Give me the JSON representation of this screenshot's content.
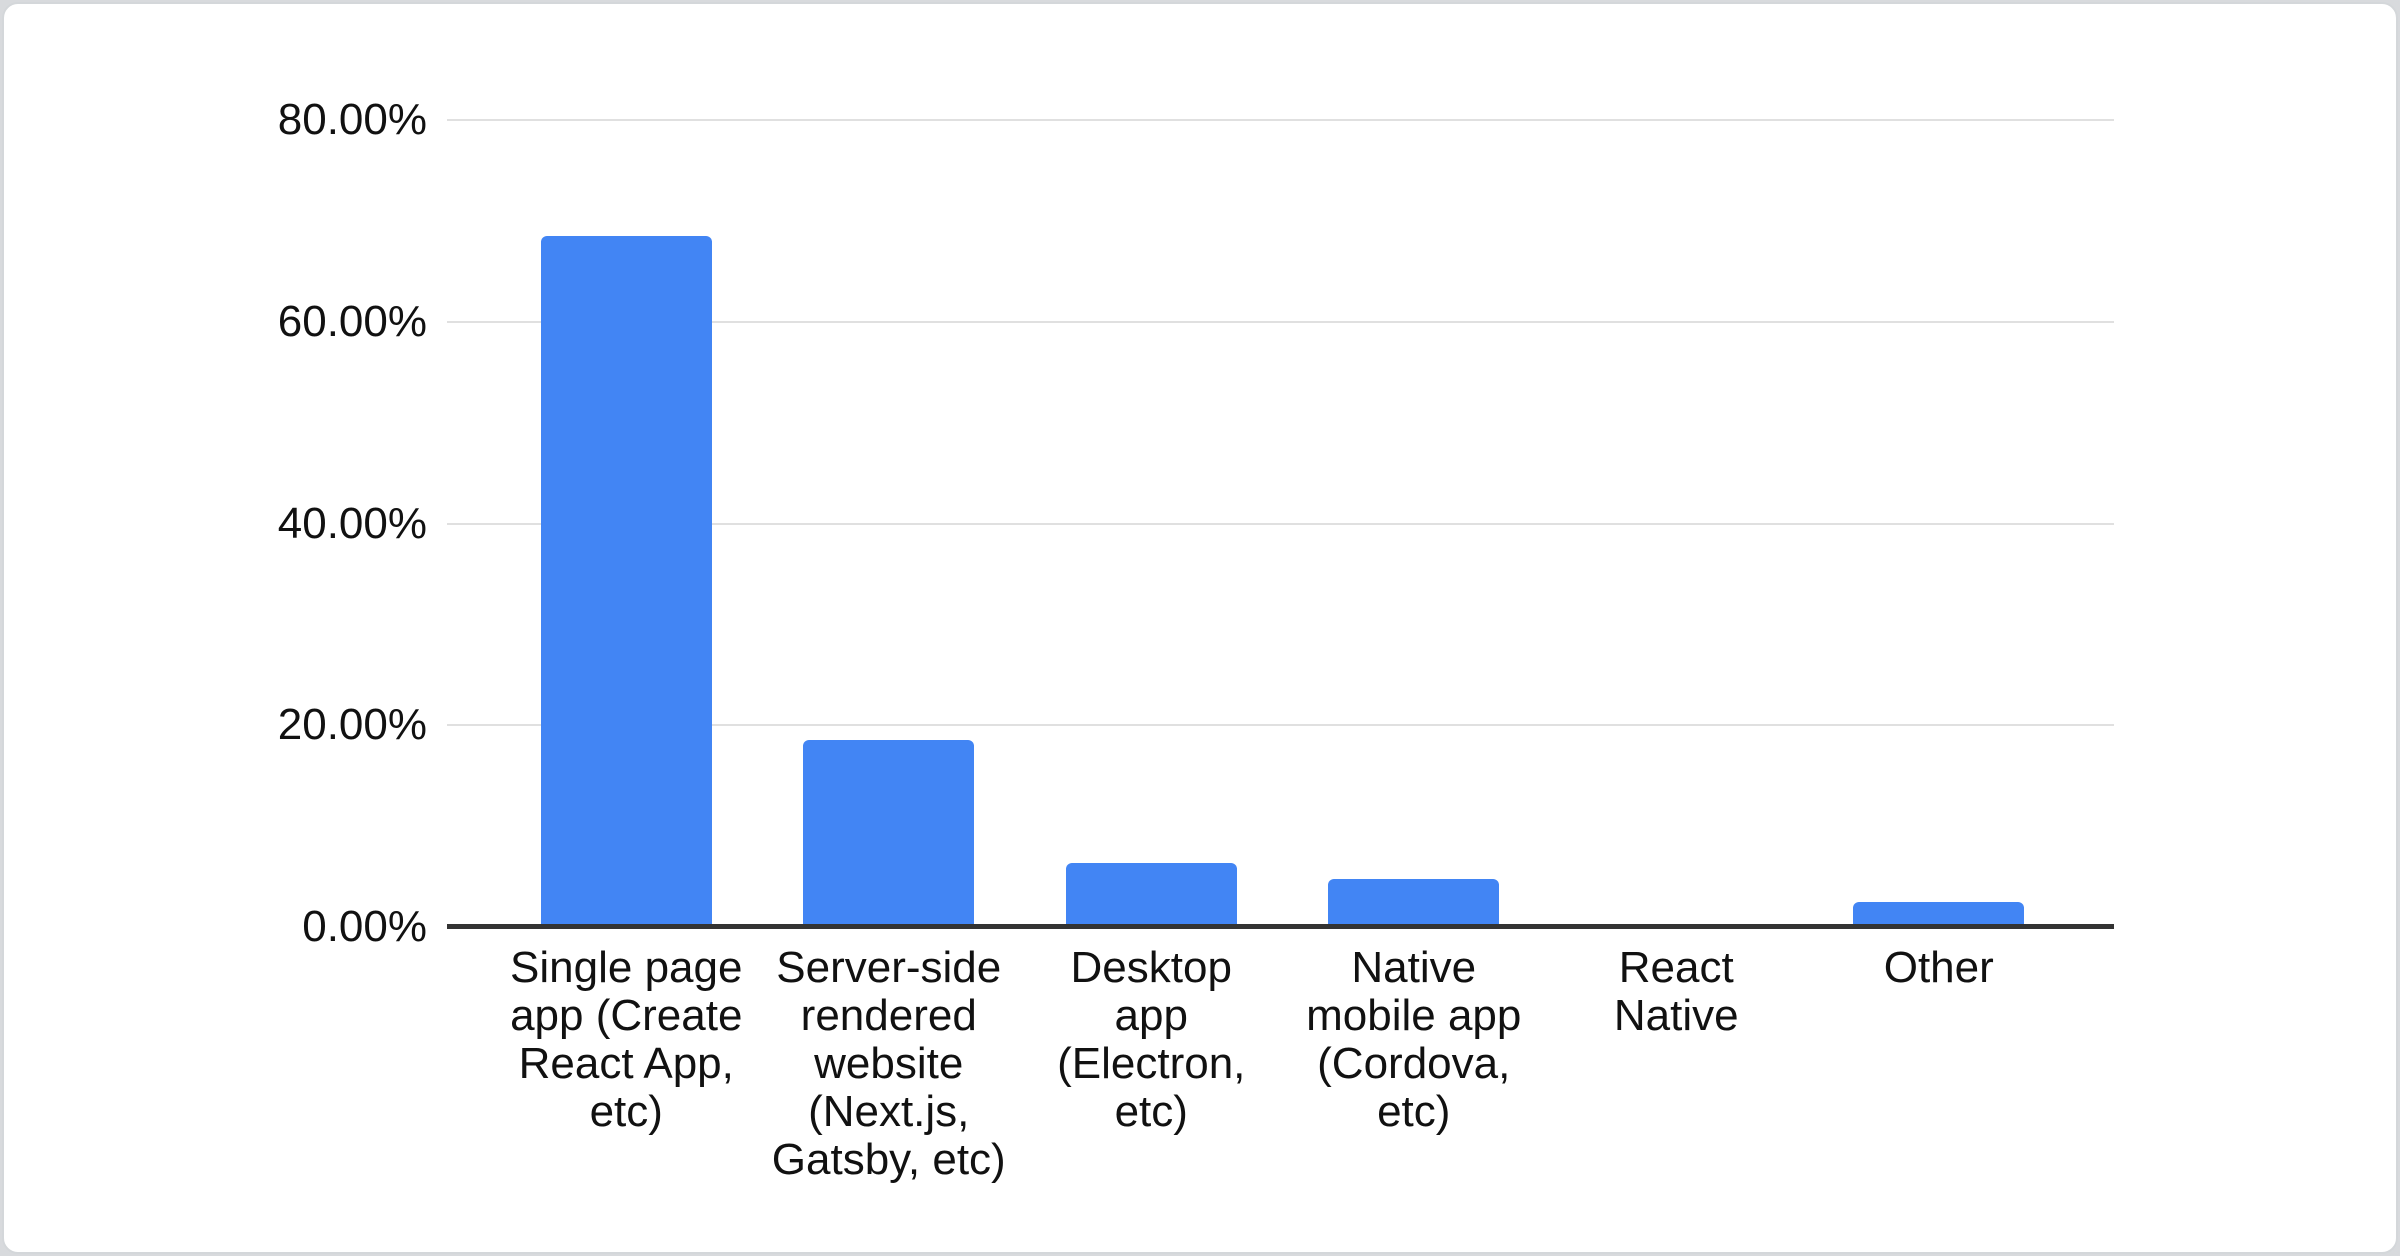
{
  "card": {
    "background": "#ffffff",
    "border_color": "#d4d7da",
    "page_background": "#d8dadd"
  },
  "colors": {
    "bar": "#4285f4",
    "gridline": "#e0e0e0",
    "axis_line": "#333333",
    "label_text": "#111111"
  },
  "chart_data": {
    "type": "bar",
    "title": "",
    "xlabel": "",
    "ylabel": "",
    "legend": "none",
    "grid": true,
    "ylim": [
      0,
      80
    ],
    "tick_format": "0.00%",
    "yticks": [
      {
        "value": 0,
        "label": "0.00%"
      },
      {
        "value": 20,
        "label": "20.00%"
      },
      {
        "value": 40,
        "label": "40.00%"
      },
      {
        "value": 60,
        "label": "60.00%"
      },
      {
        "value": 80,
        "label": "80.00%"
      }
    ],
    "categories": [
      "Single page app (Create React App, etc)",
      "Server-side rendered website (Next.js, Gatsby, etc)",
      "Desktop app (Electron, etc)",
      "Native mobile app (Cordova, etc)",
      "React Native",
      "Other"
    ],
    "label_lines": [
      "Single page\napp (Create\nReact App,\netc)",
      "Server-side\nrendered\nwebsite\n(Next.js,\nGatsby, etc)",
      "Desktop\napp\n(Electron,\netc)",
      "Native\nmobile app\n(Cordova,\netc)",
      "React\nNative",
      "Other"
    ],
    "values": [
      68.5,
      18.5,
      6.3,
      4.8,
      0,
      2.5
    ]
  }
}
